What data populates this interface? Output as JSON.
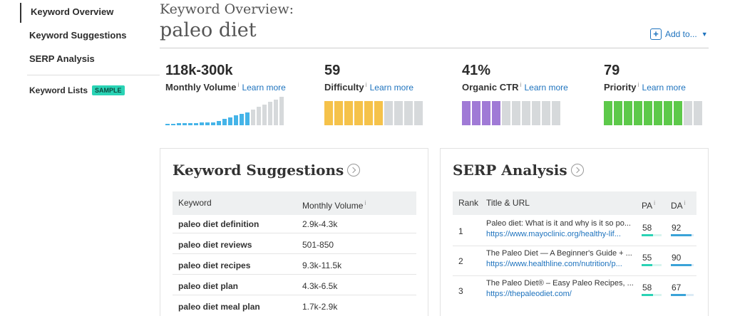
{
  "sidebar": {
    "items": [
      {
        "label": "Keyword Overview"
      },
      {
        "label": "Keyword Suggestions"
      },
      {
        "label": "SERP Analysis"
      }
    ],
    "lists_label": "Keyword Lists",
    "sample_badge": "SAMPLE"
  },
  "header": {
    "subtitle": "Keyword Overview:",
    "title": "paleo diet",
    "add_to_label": "Add to...",
    "add_icon": "plus-icon",
    "caret_icon": "caret-down-icon"
  },
  "metrics": [
    {
      "value": "118k-300k",
      "label": "Monthly Volume",
      "link": "Learn more"
    },
    {
      "value": "59",
      "label": "Difficulty",
      "link": "Learn more",
      "score": 59,
      "color": "#f5c24a"
    },
    {
      "value": "41%",
      "label": "Organic CTR",
      "link": "Learn more",
      "score": 41,
      "color": "#a07ad6"
    },
    {
      "value": "79",
      "label": "Priority",
      "link": "Learn more",
      "score": 79,
      "color": "#5dc94a"
    }
  ],
  "colors": {
    "volume_filled": "#45b4e8",
    "volume_empty": "#d6d9db",
    "segment_empty": "#d6d9db",
    "link": "#1e73be",
    "badge": "#2ad3b5"
  },
  "keyword_suggestions": {
    "title": "Keyword Suggestions",
    "columns": [
      "Keyword",
      "Monthly Volume"
    ],
    "rows": [
      {
        "keyword": "paleo diet definition",
        "volume": "2.9k-4.3k"
      },
      {
        "keyword": "paleo diet reviews",
        "volume": "501-850"
      },
      {
        "keyword": "paleo diet recipes",
        "volume": "9.3k-11.5k"
      },
      {
        "keyword": "paleo diet plan",
        "volume": "4.3k-6.5k"
      },
      {
        "keyword": "paleo diet meal plan",
        "volume": "1.7k-2.9k"
      }
    ]
  },
  "serp_analysis": {
    "title": "SERP Analysis",
    "columns": [
      "Rank",
      "Title & URL",
      "PA",
      "DA"
    ],
    "rows": [
      {
        "rank": "1",
        "title": "Paleo diet: What is it and why is it so po...",
        "url": "https://www.mayoclinic.org/healthy-lif...",
        "pa": "58",
        "da": "92"
      },
      {
        "rank": "2",
        "title": "The Paleo Diet — A Beginner's Guide + ...",
        "url": "https://www.healthline.com/nutrition/p...",
        "pa": "55",
        "da": "90"
      },
      {
        "rank": "3",
        "title": "The Paleo Diet® – Easy Paleo Recipes, ...",
        "url": "https://thepaleodiet.com/",
        "pa": "58",
        "da": "67"
      }
    ]
  }
}
